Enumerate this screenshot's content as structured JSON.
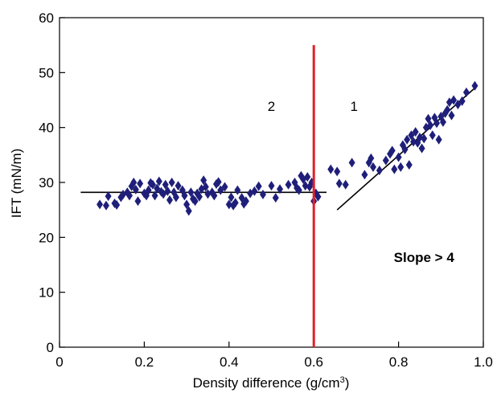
{
  "chart_data": {
    "type": "scatter",
    "xlabel_main": "Density difference (g/cm",
    "xlabel_sup": "3",
    "xlabel_close": ")",
    "ylabel": "IFT (mN/m)",
    "xlim": [
      0,
      1.0
    ],
    "ylim": [
      0,
      60
    ],
    "x_ticks": [
      0,
      0.2,
      0.4,
      0.6,
      0.8,
      1.0
    ],
    "x_tick_labels": [
      "0",
      "0.2",
      "0.4",
      "0.6",
      "0.8",
      "1.0"
    ],
    "y_ticks": [
      0,
      10,
      20,
      30,
      40,
      50,
      60
    ],
    "y_tick_labels": [
      "0",
      "10",
      "20",
      "30",
      "40",
      "50",
      "60"
    ],
    "grid": false,
    "marker_color": "#1f1f7a",
    "points": [
      [
        0.095,
        26.0
      ],
      [
        0.11,
        25.8
      ],
      [
        0.115,
        27.5
      ],
      [
        0.13,
        26.2
      ],
      [
        0.135,
        25.9
      ],
      [
        0.145,
        27.3
      ],
      [
        0.15,
        27.8
      ],
      [
        0.16,
        28.2
      ],
      [
        0.165,
        27.6
      ],
      [
        0.17,
        29.3
      ],
      [
        0.175,
        30.0
      ],
      [
        0.18,
        28.7
      ],
      [
        0.185,
        26.6
      ],
      [
        0.19,
        29.8
      ],
      [
        0.2,
        28.0
      ],
      [
        0.205,
        27.6
      ],
      [
        0.21,
        28.6
      ],
      [
        0.215,
        29.9
      ],
      [
        0.22,
        29.6
      ],
      [
        0.225,
        27.6
      ],
      [
        0.23,
        28.9
      ],
      [
        0.235,
        30.2
      ],
      [
        0.24,
        28.3
      ],
      [
        0.245,
        27.9
      ],
      [
        0.25,
        29.6
      ],
      [
        0.255,
        28.4
      ],
      [
        0.26,
        26.8
      ],
      [
        0.265,
        30.0
      ],
      [
        0.27,
        28.2
      ],
      [
        0.275,
        27.3
      ],
      [
        0.28,
        29.4
      ],
      [
        0.29,
        28.6
      ],
      [
        0.295,
        27.6
      ],
      [
        0.3,
        26.0
      ],
      [
        0.305,
        24.8
      ],
      [
        0.31,
        28.2
      ],
      [
        0.315,
        27.0
      ],
      [
        0.32,
        26.6
      ],
      [
        0.325,
        28.0
      ],
      [
        0.33,
        27.4
      ],
      [
        0.335,
        28.8
      ],
      [
        0.34,
        30.4
      ],
      [
        0.345,
        29.2
      ],
      [
        0.35,
        27.9
      ],
      [
        0.36,
        28.2
      ],
      [
        0.365,
        27.6
      ],
      [
        0.37,
        29.7
      ],
      [
        0.375,
        30.1
      ],
      [
        0.38,
        28.6
      ],
      [
        0.39,
        29.2
      ],
      [
        0.4,
        26.0
      ],
      [
        0.405,
        27.3
      ],
      [
        0.41,
        25.8
      ],
      [
        0.415,
        26.3
      ],
      [
        0.42,
        28.6
      ],
      [
        0.43,
        27.2
      ],
      [
        0.435,
        26.1
      ],
      [
        0.44,
        26.6
      ],
      [
        0.45,
        28.0
      ],
      [
        0.46,
        28.4
      ],
      [
        0.47,
        29.3
      ],
      [
        0.48,
        27.8
      ],
      [
        0.5,
        29.4
      ],
      [
        0.51,
        27.2
      ],
      [
        0.52,
        28.8
      ],
      [
        0.54,
        29.6
      ],
      [
        0.555,
        30.0
      ],
      [
        0.56,
        29.0
      ],
      [
        0.565,
        28.6
      ],
      [
        0.57,
        31.2
      ],
      [
        0.575,
        30.6
      ],
      [
        0.58,
        29.4
      ],
      [
        0.585,
        31.0
      ],
      [
        0.59,
        29.2
      ],
      [
        0.595,
        30.0
      ],
      [
        0.6,
        26.6
      ],
      [
        0.605,
        28.0
      ],
      [
        0.61,
        27.4
      ],
      [
        0.64,
        32.4
      ],
      [
        0.655,
        32.0
      ],
      [
        0.66,
        29.8
      ],
      [
        0.675,
        29.6
      ],
      [
        0.69,
        33.6
      ],
      [
        0.72,
        31.4
      ],
      [
        0.73,
        33.6
      ],
      [
        0.735,
        34.4
      ],
      [
        0.74,
        32.8
      ],
      [
        0.755,
        32.2
      ],
      [
        0.77,
        34.0
      ],
      [
        0.78,
        35.2
      ],
      [
        0.785,
        35.8
      ],
      [
        0.79,
        32.4
      ],
      [
        0.8,
        34.6
      ],
      [
        0.805,
        32.8
      ],
      [
        0.81,
        36.8
      ],
      [
        0.815,
        36.0
      ],
      [
        0.82,
        37.8
      ],
      [
        0.825,
        33.2
      ],
      [
        0.83,
        38.6
      ],
      [
        0.835,
        37.4
      ],
      [
        0.84,
        39.2
      ],
      [
        0.845,
        37.2
      ],
      [
        0.85,
        38.2
      ],
      [
        0.855,
        36.2
      ],
      [
        0.86,
        38.0
      ],
      [
        0.865,
        40.0
      ],
      [
        0.87,
        41.6
      ],
      [
        0.875,
        40.4
      ],
      [
        0.88,
        38.6
      ],
      [
        0.885,
        41.8
      ],
      [
        0.89,
        40.8
      ],
      [
        0.895,
        37.8
      ],
      [
        0.9,
        42.0
      ],
      [
        0.905,
        41.0
      ],
      [
        0.91,
        42.6
      ],
      [
        0.915,
        43.2
      ],
      [
        0.92,
        44.6
      ],
      [
        0.925,
        42.2
      ],
      [
        0.93,
        45.0
      ],
      [
        0.94,
        44.2
      ],
      [
        0.95,
        44.8
      ],
      [
        0.96,
        46.4
      ],
      [
        0.98,
        47.6
      ]
    ],
    "fit_lines": [
      {
        "x1": 0.05,
        "y1": 28.2,
        "x2": 0.63,
        "y2": 28.2,
        "color": "#000000"
      },
      {
        "x1": 0.655,
        "y1": 25.0,
        "x2": 0.98,
        "y2": 47.2,
        "color": "#000000"
      }
    ],
    "vertical_line": {
      "x": 0.6,
      "y1": 0,
      "y2": 55,
      "color": "#e0202a"
    },
    "annotations": [
      {
        "text": "2",
        "x": 0.5,
        "y": 43.0,
        "bold": false
      },
      {
        "text": "1",
        "x": 0.695,
        "y": 43.0,
        "bold": false
      },
      {
        "text": "Slope > 4",
        "x": 0.86,
        "y": 15.5,
        "bold": true
      }
    ]
  }
}
